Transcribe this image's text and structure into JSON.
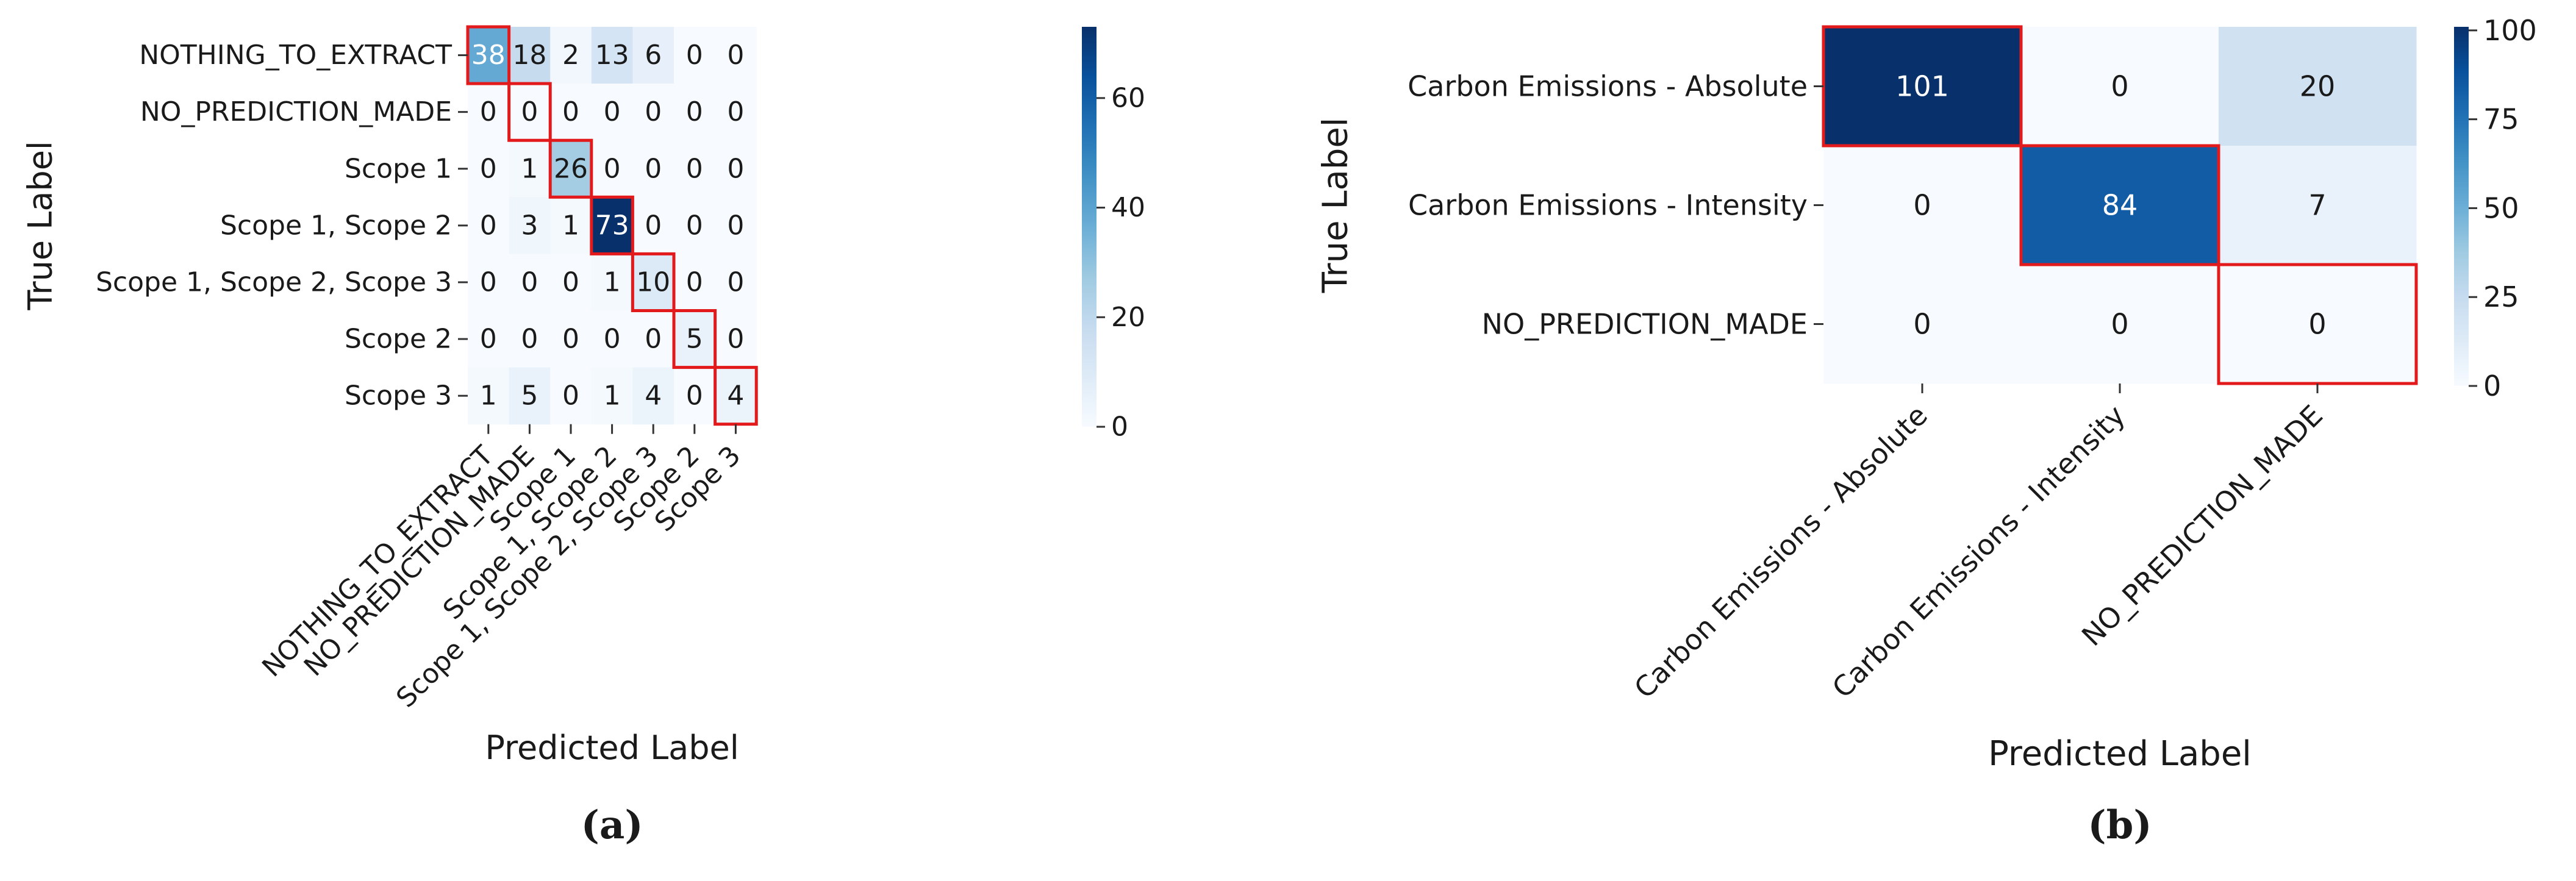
{
  "chart_data": [
    {
      "type": "heatmap",
      "panel_label": "(a)",
      "xlabel": "Predicted Label",
      "ylabel": "True Label",
      "rows": [
        "NOTHING_TO_EXTRACT",
        "NO_PREDICTION_MADE",
        "Scope 1",
        "Scope 1, Scope 2",
        "Scope 1, Scope 2, Scope 3",
        "Scope 2",
        "Scope 3"
      ],
      "columns": [
        "NOTHING_TO_EXTRACT",
        "NO_PREDICTION_MADE",
        "Scope 1",
        "Scope 1, Scope 2",
        "Scope 1, Scope 2, Scope 3",
        "Scope 2",
        "Scope 3"
      ],
      "values": [
        [
          38,
          18,
          2,
          13,
          6,
          0,
          0
        ],
        [
          0,
          0,
          0,
          0,
          0,
          0,
          0
        ],
        [
          0,
          1,
          26,
          0,
          0,
          0,
          0
        ],
        [
          0,
          3,
          1,
          73,
          0,
          0,
          0
        ],
        [
          0,
          0,
          0,
          1,
          10,
          0,
          0
        ],
        [
          0,
          0,
          0,
          0,
          0,
          5,
          0
        ],
        [
          1,
          5,
          0,
          1,
          4,
          0,
          4
        ]
      ],
      "colorbar": {
        "range": [
          0,
          73
        ],
        "ticks": [
          0,
          20,
          40,
          60
        ]
      },
      "highlight": "diagonal",
      "highlight_color": "#e31a1c",
      "colormap": "Blues"
    },
    {
      "type": "heatmap",
      "panel_label": "(b)",
      "xlabel": "Predicted Label",
      "ylabel": "True Label",
      "rows": [
        "Carbon Emissions - Absolute",
        "Carbon Emissions - Intensity",
        "NO_PREDICTION_MADE"
      ],
      "columns": [
        "Carbon Emissions - Absolute",
        "Carbon Emissions - Intensity",
        "NO_PREDICTION_MADE"
      ],
      "values": [
        [
          101,
          0,
          20
        ],
        [
          0,
          84,
          7
        ],
        [
          0,
          0,
          0
        ]
      ],
      "colorbar": {
        "range": [
          0,
          101
        ],
        "ticks": [
          0,
          25,
          50,
          75,
          100
        ]
      },
      "highlight": "diagonal",
      "highlight_color": "#e31a1c",
      "colormap": "Blues"
    }
  ]
}
